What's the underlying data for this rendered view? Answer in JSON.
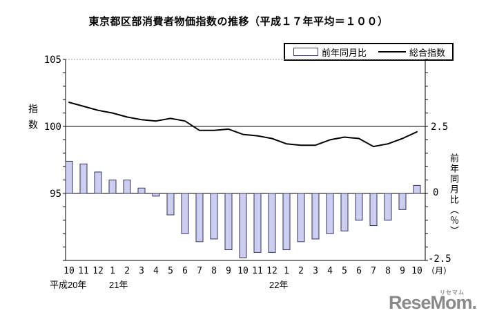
{
  "title": "東京都区部消費者物価指数の推移（平成１７年平均＝１００）",
  "legend": {
    "bar_label": "前年同月比",
    "line_label": "総合指数"
  },
  "left_axis": {
    "title": "指数",
    "ticks": [
      "105",
      "100",
      "95"
    ]
  },
  "right_axis": {
    "title": "前年同月比（％）",
    "ticks": [
      "2.5",
      "0",
      "-2.5"
    ],
    "unit_label": "（月）"
  },
  "x_axis": {
    "years": [
      "平成20年",
      "21年",
      "22年"
    ]
  },
  "logo": {
    "text": "ReseMom",
    "suffix": ".",
    "ruby": "リセマム",
    "color": "#8a8a8a"
  },
  "colors": {
    "bar_fill": "#cdcdf0",
    "bar_border": "#333355",
    "line": "#000000",
    "frame": "#000000",
    "top_dotted": "#999999",
    "background": "#ffffff"
  },
  "chart_data": {
    "type": "bar+line",
    "title": "東京都区部消費者物価指数の推移（平成１７年平均＝１００）",
    "categories": [
      "10",
      "11",
      "12",
      "1",
      "2",
      "3",
      "4",
      "5",
      "6",
      "7",
      "8",
      "9",
      "10",
      "11",
      "12",
      "1",
      "2",
      "3",
      "4",
      "5",
      "6",
      "7",
      "8",
      "9",
      "10"
    ],
    "year_groups": [
      {
        "label": "平成20年",
        "from": 0,
        "to": 2
      },
      {
        "label": "21年",
        "from": 3,
        "to": 14
      },
      {
        "label": "22年",
        "from": 15,
        "to": 24
      }
    ],
    "series": [
      {
        "name": "前年同月比",
        "type": "bar",
        "axis": "right",
        "unit": "%",
        "values": [
          1.2,
          1.1,
          0.8,
          0.5,
          0.5,
          0.2,
          -0.1,
          -0.8,
          -1.5,
          -1.8,
          -1.7,
          -2.1,
          -2.4,
          -2.2,
          -2.2,
          -2.1,
          -1.8,
          -1.7,
          -1.5,
          -1.4,
          -1.0,
          -1.2,
          -1.0,
          -0.6,
          0.3
        ]
      },
      {
        "name": "総合指数",
        "type": "line",
        "axis": "left",
        "values": [
          101.8,
          101.5,
          101.2,
          101.0,
          100.7,
          100.5,
          100.4,
          100.6,
          100.4,
          99.7,
          99.7,
          99.8,
          99.4,
          99.3,
          99.1,
          98.7,
          98.6,
          98.6,
          99.0,
          99.2,
          99.1,
          98.5,
          98.7,
          99.1,
          99.6
        ]
      }
    ],
    "left_axis": {
      "label": "指数",
      "min": 90,
      "max": 105,
      "tick_values": [
        105,
        100,
        95
      ]
    },
    "right_axis": {
      "label": "前年同月比（％）",
      "min": -2.5,
      "max": 2.5,
      "tick_values": [
        2.5,
        0,
        -2.5
      ]
    },
    "grid": {
      "top_dotted_at": 105,
      "solid_line_at": 100,
      "bar_baseline_at": 0
    },
    "legend_position": "top-right"
  }
}
